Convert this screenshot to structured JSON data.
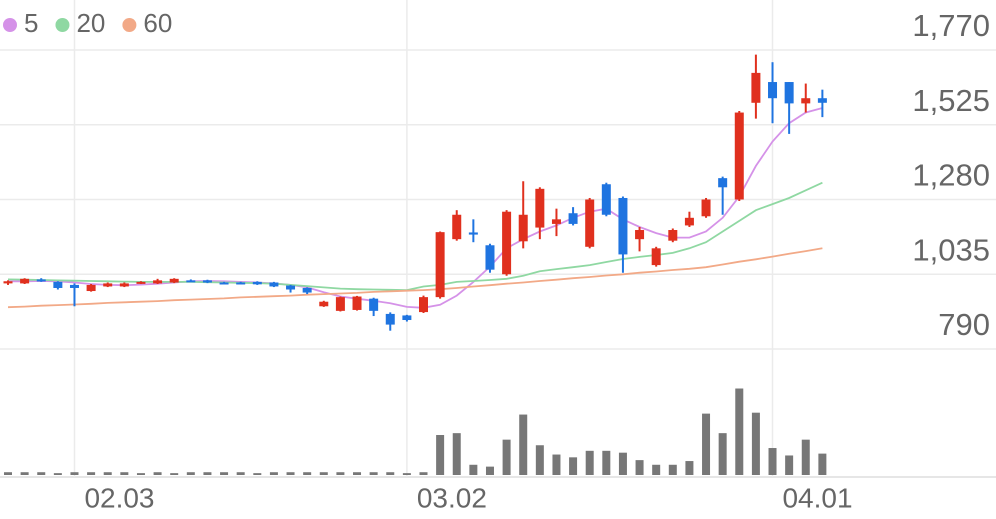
{
  "chart_data": {
    "type": "candlestick",
    "categories": [
      null,
      null,
      null,
      null,
      "02.03",
      null,
      null,
      null,
      null,
      null,
      null,
      null,
      null,
      null,
      null,
      null,
      null,
      null,
      null,
      null,
      null,
      null,
      null,
      null,
      "03.02",
      null,
      null,
      null,
      null,
      null,
      null,
      null,
      null,
      null,
      null,
      null,
      null,
      null,
      null,
      null,
      null,
      null,
      null,
      null,
      null,
      null,
      "04.01",
      null,
      null,
      null
    ],
    "open": [
      1005,
      1005,
      1018,
      1010,
      1000,
      980,
      995,
      995,
      1005,
      1005,
      1008,
      1015,
      1015,
      1008,
      1008,
      1010,
      1008,
      998,
      990,
      930,
      915,
      918,
      955,
      905,
      900,
      911,
      960,
      1150,
      1172,
      1130,
      1035,
      1143,
      1188,
      1200,
      1235,
      1125,
      1330,
      1285,
      1150,
      1065,
      1145,
      1195,
      1225,
      1350,
      1280,
      1597,
      1665,
      1665,
      1595,
      1612
    ],
    "high": [
      1015,
      1022,
      1022,
      1012,
      1005,
      1003,
      1008,
      1008,
      1012,
      1020,
      1022,
      1018,
      1017,
      1010,
      1010,
      1012,
      1010,
      1000,
      992,
      948,
      962,
      964,
      958,
      910,
      902,
      965,
      1175,
      1245,
      1215,
      1135,
      1245,
      1340,
      1320,
      1250,
      1255,
      1285,
      1335,
      1290,
      1190,
      1125,
      1185,
      1240,
      1285,
      1355,
      1570,
      1755,
      1730,
      1665,
      1660,
      1640
    ],
    "low": [
      1000,
      1003,
      1010,
      985,
      930,
      978,
      993,
      993,
      1003,
      1003,
      1006,
      1010,
      1006,
      1003,
      1003,
      1000,
      993,
      975,
      970,
      928,
      913,
      916,
      898,
      850,
      880,
      908,
      955,
      1145,
      1140,
      1040,
      1030,
      1120,
      1150,
      1160,
      1195,
      1120,
      1225,
      1040,
      1110,
      1060,
      1140,
      1190,
      1220,
      1230,
      1275,
      1545,
      1530,
      1495,
      1565,
      1550
    ],
    "close": [
      1012,
      1020,
      1012,
      990,
      990,
      1000,
      1005,
      1005,
      1010,
      1015,
      1020,
      1012,
      1008,
      1005,
      1005,
      1002,
      995,
      985,
      975,
      945,
      960,
      962,
      915,
      870,
      885,
      960,
      1173,
      1230,
      1165,
      1050,
      1240,
      1230,
      1315,
      1215,
      1200,
      1280,
      1230,
      1100,
      1180,
      1120,
      1180,
      1220,
      1280,
      1320,
      1565,
      1695,
      1612,
      1595,
      1612,
      1597
    ],
    "up_color": "#e0301e",
    "down_color": "#1f74e0",
    "series": [
      {
        "name": "5",
        "color": "#d592e8",
        "values": [
          1012,
          1012,
          1013,
          1012,
          1008,
          1003,
          1000,
          999,
          1001,
          1004,
          1008,
          1012,
          1013,
          1012,
          1010,
          1008,
          1005,
          1000,
          992,
          976,
          962,
          955,
          948,
          940,
          928,
          925,
          935,
          965,
          1010,
          1060,
          1120,
          1150,
          1175,
          1195,
          1220,
          1240,
          1250,
          1215,
          1190,
          1170,
          1155,
          1155,
          1175,
          1220,
          1290,
          1390,
          1470,
          1530,
          1565,
          1580
        ]
      },
      {
        "name": "20",
        "color": "#8fd8a2",
        "values": [
          1018,
          1017,
          1016,
          1015,
          1014,
          1013,
          1012,
          1011,
          1010,
          1010,
          1010,
          1010,
          1009,
          1008,
          1007,
          1006,
          1004,
          1000,
          996,
          992,
          988,
          986,
          985,
          984,
          983,
          995,
          1000,
          1010,
          1013,
          1016,
          1020,
          1030,
          1045,
          1052,
          1058,
          1065,
          1075,
          1085,
          1092,
          1098,
          1105,
          1120,
          1140,
          1175,
          1210,
          1245,
          1265,
          1285,
          1310,
          1335
        ]
      },
      {
        "name": "60",
        "color": "#f2a987",
        "values": [
          927,
          929,
          932,
          934,
          936,
          938,
          941,
          943,
          945,
          947,
          950,
          952,
          954,
          956,
          959,
          961,
          963,
          965,
          968,
          970,
          972,
          974,
          977,
          979,
          981,
          983,
          986,
          990,
          995,
          999,
          1004,
          1008,
          1013,
          1017,
          1022,
          1026,
          1031,
          1035,
          1040,
          1044,
          1049,
          1053,
          1058,
          1067,
          1076,
          1084,
          1093,
          1102,
          1111,
          1120
        ]
      }
    ],
    "volume": [
      3,
      3,
      3,
      2,
      3,
      3,
      3,
      3,
      2,
      3,
      2,
      3,
      3,
      3,
      3,
      2,
      3,
      3,
      3,
      3,
      3,
      3,
      3,
      3,
      2,
      3,
      43,
      45,
      11,
      9,
      38,
      65,
      32,
      22,
      19,
      26,
      26,
      24,
      16,
      11,
      11,
      15,
      66,
      45,
      93,
      67,
      29,
      21,
      38,
      23
    ],
    "volume_color": "#777777",
    "ylim": [
      790,
      1770
    ],
    "yticks": [
      {
        "value": 1770,
        "label": "1,770"
      },
      {
        "value": 1525,
        "label": "1,525"
      },
      {
        "value": 1280,
        "label": "1,280"
      },
      {
        "value": 1035,
        "label": "1,035"
      },
      790
    ],
    "grid": true
  }
}
